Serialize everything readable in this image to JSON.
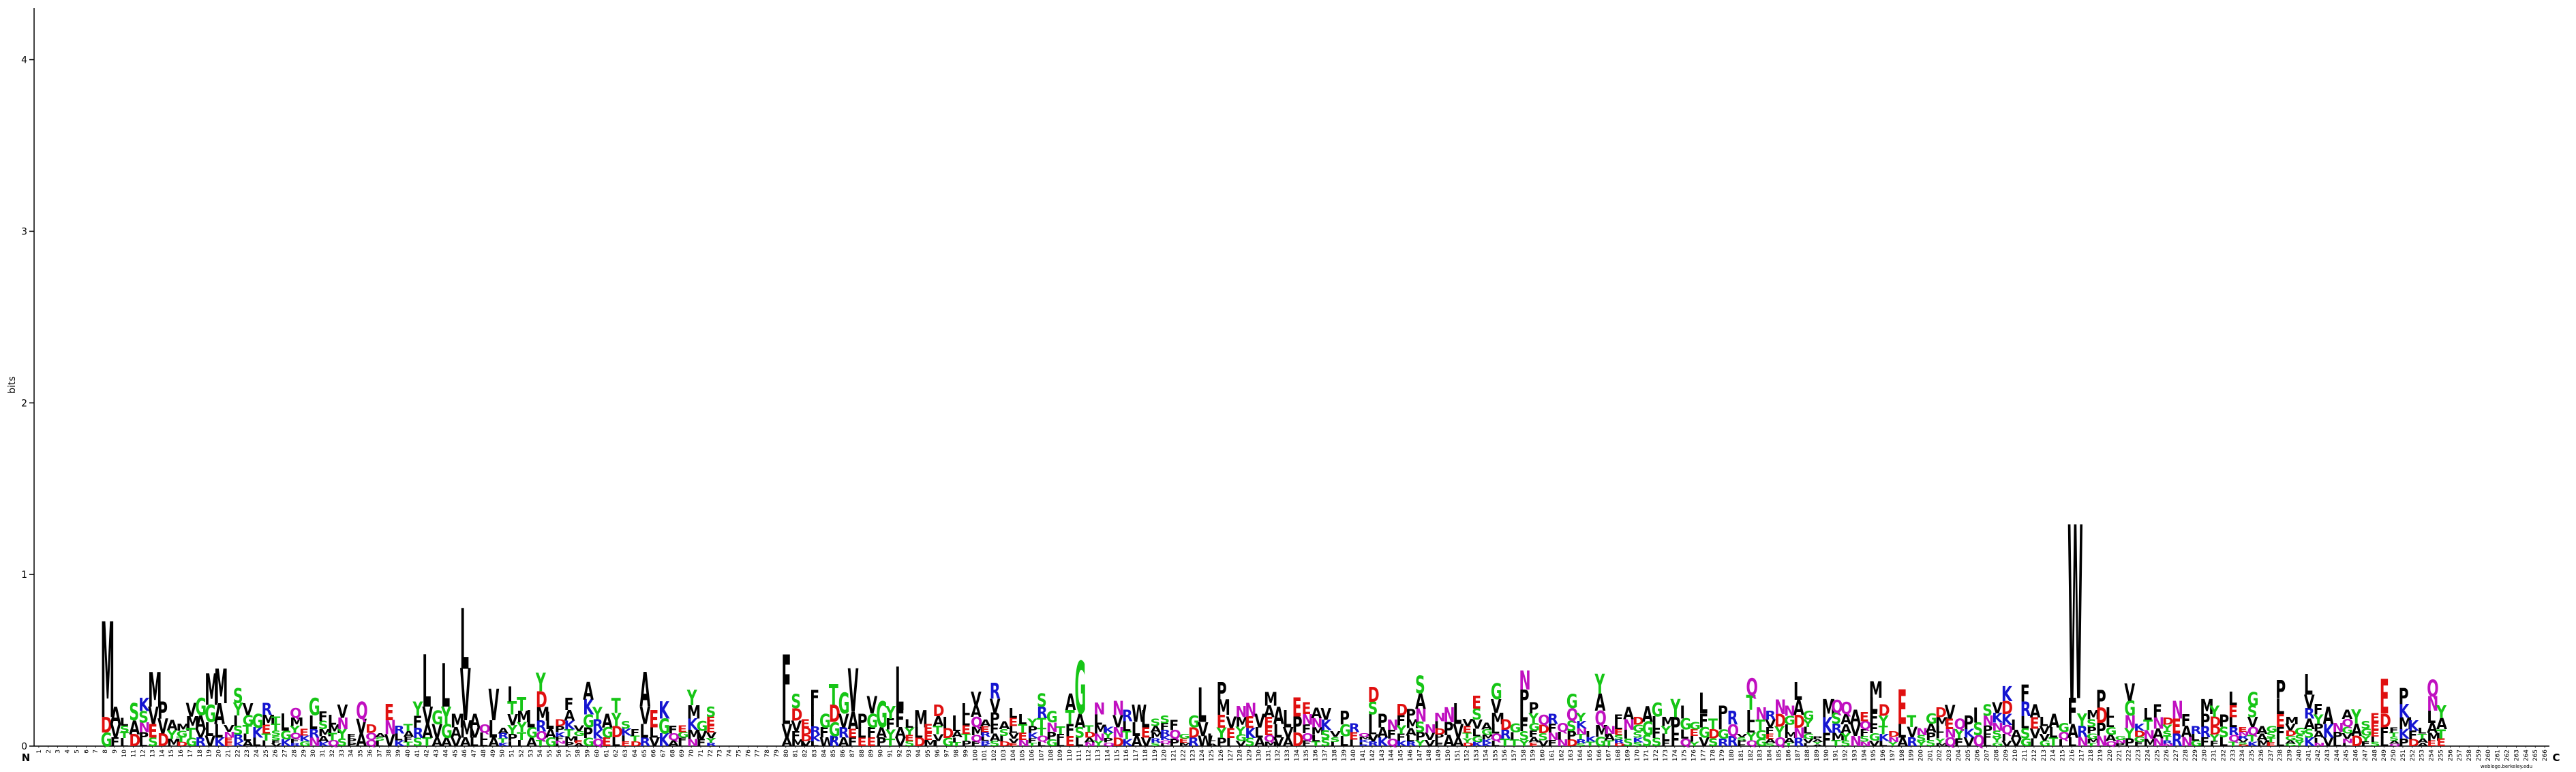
{
  "chart_data": {
    "type": "sequence-logo",
    "title": "",
    "ylabel": "bits",
    "ylim": [
      0,
      4.3
    ],
    "yticks": [
      0,
      1,
      2,
      3,
      4
    ],
    "n_positions": 266,
    "start_label": "N",
    "end_label": "C",
    "credit": "weblogo.berkeley.edu",
    "colors": {
      "hydrophobic": "#000000",
      "polar": "#16c516",
      "acidic": "#e01010",
      "basic": "#1515d0",
      "amide": "#c010c0"
    },
    "residue_color_group": {
      "A": "hydrophobic",
      "V": "hydrophobic",
      "L": "hydrophobic",
      "I": "hydrophobic",
      "M": "hydrophobic",
      "F": "hydrophobic",
      "W": "hydrophobic",
      "P": "hydrophobic",
      "G": "polar",
      "S": "polar",
      "T": "polar",
      "Y": "polar",
      "C": "polar",
      "D": "acidic",
      "E": "acidic",
      "K": "basic",
      "R": "basic",
      "H": "basic",
      "N": "amide",
      "Q": "amide"
    },
    "columns": [
      {
        "pos": 8,
        "letters": [
          [
            "M",
            0.55
          ],
          [
            "D",
            0.09
          ],
          [
            "G",
            0.08
          ]
        ]
      },
      {
        "pos": 9,
        "letters": [
          [
            "A",
            0.1
          ],
          [
            "V",
            0.08
          ],
          [
            "F",
            0.05
          ]
        ]
      },
      {
        "pos": 11,
        "letters": [
          [
            "S",
            0.1
          ],
          [
            "A",
            0.08
          ],
          [
            "D",
            0.07
          ]
        ]
      },
      {
        "pos": 13,
        "letters": [
          [
            "M",
            0.2
          ],
          [
            "V",
            0.1
          ],
          [
            "E",
            0.08
          ],
          [
            "S",
            0.05
          ]
        ]
      },
      {
        "pos": 18,
        "letters": [
          [
            "G",
            0.1
          ],
          [
            "A",
            0.08
          ],
          [
            "R",
            0.05
          ],
          [
            "V",
            0.05
          ]
        ]
      },
      {
        "pos": 19,
        "letters": [
          [
            "M",
            0.18
          ],
          [
            "G",
            0.1
          ],
          [
            "L",
            0.08
          ],
          [
            "V",
            0.06
          ]
        ]
      },
      {
        "pos": 20,
        "letters": [
          [
            "M",
            0.2
          ],
          [
            "A",
            0.12
          ],
          [
            "L",
            0.08
          ],
          [
            "K",
            0.05
          ]
        ]
      },
      {
        "pos": 24,
        "letters": [
          [
            "G",
            0.08
          ],
          [
            "K",
            0.06
          ],
          [
            "L",
            0.05
          ]
        ]
      },
      {
        "pos": 27,
        "letters": [
          [
            "L",
            0.1
          ],
          [
            "G",
            0.05
          ],
          [
            "K",
            0.04
          ]
        ]
      },
      {
        "pos": 30,
        "letters": [
          [
            "G",
            0.1
          ],
          [
            "L",
            0.08
          ],
          [
            "N",
            0.05
          ],
          [
            "R",
            0.05
          ]
        ]
      },
      {
        "pos": 42,
        "letters": [
          [
            "L",
            0.3
          ],
          [
            "V",
            0.1
          ],
          [
            "A",
            0.08
          ],
          [
            "T",
            0.05
          ]
        ]
      },
      {
        "pos": 43,
        "letters": [
          [
            "V",
            0.08
          ],
          [
            "G",
            0.08
          ],
          [
            "A",
            0.05
          ]
        ]
      },
      {
        "pos": 44,
        "letters": [
          [
            "L",
            0.25
          ],
          [
            "Y",
            0.1
          ],
          [
            "G",
            0.08
          ],
          [
            "A",
            0.05
          ]
        ]
      },
      {
        "pos": 45,
        "letters": [
          [
            "M",
            0.08
          ],
          [
            "A",
            0.06
          ],
          [
            "V",
            0.05
          ]
        ]
      },
      {
        "pos": 46,
        "letters": [
          [
            "L",
            0.35
          ],
          [
            "V",
            0.3
          ],
          [
            "M",
            0.1
          ],
          [
            "A",
            0.05
          ]
        ]
      },
      {
        "pos": 47,
        "letters": [
          [
            "A",
            0.08
          ],
          [
            "V",
            0.06
          ],
          [
            "L",
            0.05
          ]
        ]
      },
      {
        "pos": 49,
        "letters": [
          [
            "V",
            0.18
          ],
          [
            "L",
            0.1
          ],
          [
            "A",
            0.05
          ]
        ]
      },
      {
        "pos": 53,
        "letters": [
          [
            "L",
            0.1
          ],
          [
            "G",
            0.06
          ],
          [
            "A",
            0.05
          ]
        ]
      },
      {
        "pos": 55,
        "letters": [
          [
            "L",
            0.1
          ],
          [
            "G",
            0.05
          ],
          [
            "A",
            0.05
          ]
        ]
      },
      {
        "pos": 61,
        "letters": [
          [
            "A",
            0.08
          ],
          [
            "G",
            0.06
          ],
          [
            "E",
            0.05
          ]
        ]
      },
      {
        "pos": 65,
        "letters": [
          [
            "A",
            0.2
          ],
          [
            "V",
            0.1
          ],
          [
            "L",
            0.08
          ],
          [
            "R",
            0.05
          ]
        ]
      },
      {
        "pos": 66,
        "letters": [
          [
            "E",
            0.1
          ],
          [
            "L",
            0.06
          ],
          [
            "V",
            0.05
          ]
        ]
      },
      {
        "pos": 80,
        "letters": [
          [
            "F",
            0.3
          ],
          [
            "L",
            0.1
          ],
          [
            "V",
            0.08
          ],
          [
            "A",
            0.05
          ]
        ]
      },
      {
        "pos": 84,
        "letters": [
          [
            "G",
            0.08
          ],
          [
            "F",
            0.06
          ],
          [
            "W",
            0.05
          ]
        ]
      },
      {
        "pos": 85,
        "letters": [
          [
            "T",
            0.12
          ],
          [
            "D",
            0.1
          ],
          [
            "G",
            0.08
          ],
          [
            "R",
            0.06
          ]
        ]
      },
      {
        "pos": 86,
        "letters": [
          [
            "G",
            0.12
          ],
          [
            "V",
            0.08
          ],
          [
            "R",
            0.06
          ],
          [
            "A",
            0.05
          ]
        ]
      },
      {
        "pos": 87,
        "letters": [
          [
            "V",
            0.25
          ],
          [
            "A",
            0.1
          ],
          [
            "F",
            0.05
          ],
          [
            "E",
            0.05
          ]
        ]
      },
      {
        "pos": 88,
        "letters": [
          [
            "P",
            0.08
          ],
          [
            "L",
            0.06
          ],
          [
            "E",
            0.05
          ]
        ]
      },
      {
        "pos": 89,
        "letters": [
          [
            "V",
            0.1
          ],
          [
            "G",
            0.08
          ],
          [
            "F",
            0.06
          ],
          [
            "E",
            0.05
          ]
        ]
      },
      {
        "pos": 90,
        "letters": [
          [
            "G",
            0.15
          ],
          [
            "A",
            0.06
          ],
          [
            "P",
            0.05
          ]
        ]
      },
      {
        "pos": 92,
        "letters": [
          [
            "L",
            0.25
          ],
          [
            "F",
            0.1
          ],
          [
            "A",
            0.06
          ],
          [
            "V",
            0.05
          ]
        ]
      },
      {
        "pos": 94,
        "letters": [
          [
            "M",
            0.1
          ],
          [
            "L",
            0.06
          ],
          [
            "D",
            0.05
          ]
        ]
      },
      {
        "pos": 111,
        "letters": [
          [
            "G",
            0.3
          ],
          [
            "A",
            0.08
          ],
          [
            "S",
            0.06
          ],
          [
            "L",
            0.05
          ]
        ]
      },
      {
        "pos": 117,
        "letters": [
          [
            "W",
            0.1
          ],
          [
            "L",
            0.08
          ],
          [
            "A",
            0.06
          ]
        ]
      },
      {
        "pos": 118,
        "letters": [
          [
            "L",
            0.1
          ],
          [
            "E",
            0.06
          ],
          [
            "V",
            0.05
          ]
        ]
      },
      {
        "pos": 124,
        "letters": [
          [
            "L",
            0.2
          ],
          [
            "V",
            0.08
          ],
          [
            "W",
            0.06
          ]
        ]
      },
      {
        "pos": 130,
        "letters": [
          [
            "V",
            0.08
          ],
          [
            "L",
            0.06
          ],
          [
            "A",
            0.05
          ]
        ]
      },
      {
        "pos": 132,
        "letters": [
          [
            "A",
            0.1
          ],
          [
            "L",
            0.08
          ],
          [
            "V",
            0.05
          ]
        ]
      },
      {
        "pos": 133,
        "letters": [
          [
            "L",
            0.1
          ],
          [
            "V",
            0.06
          ],
          [
            "A",
            0.05
          ]
        ]
      },
      {
        "pos": 143,
        "letters": [
          [
            "P",
            0.08
          ],
          [
            "A",
            0.06
          ],
          [
            "K",
            0.05
          ]
        ]
      },
      {
        "pos": 151,
        "letters": [
          [
            "L",
            0.12
          ],
          [
            "V",
            0.08
          ],
          [
            "A",
            0.05
          ]
        ]
      },
      {
        "pos": 177,
        "letters": [
          [
            "L",
            0.12
          ],
          [
            "F",
            0.08
          ],
          [
            "G",
            0.06
          ],
          [
            "V",
            0.05
          ]
        ]
      },
      {
        "pos": 198,
        "letters": [
          [
            "E",
            0.2
          ],
          [
            "L",
            0.08
          ],
          [
            "A",
            0.05
          ]
        ]
      },
      {
        "pos": 203,
        "letters": [
          [
            "V",
            0.08
          ],
          [
            "E",
            0.06
          ],
          [
            "Q",
            0.05
          ],
          [
            "N",
            0.05
          ]
        ]
      },
      {
        "pos": 205,
        "letters": [
          [
            "P",
            0.08
          ],
          [
            "V",
            0.05
          ],
          [
            "K",
            0.05
          ]
        ]
      },
      {
        "pos": 214,
        "letters": [
          [
            "A",
            0.08
          ],
          [
            "L",
            0.06
          ],
          [
            "T",
            0.05
          ]
        ]
      },
      {
        "pos": 216,
        "letters": [
          [
            "W",
            1.0
          ],
          [
            "F",
            0.15
          ],
          [
            "A",
            0.08
          ],
          [
            "L",
            0.05
          ]
        ]
      },
      {
        "pos": 241,
        "letters": [
          [
            "L",
            0.12
          ],
          [
            "V",
            0.08
          ],
          [
            "A",
            0.06
          ],
          [
            "R",
            0.06
          ],
          [
            "K",
            0.05
          ],
          [
            "S",
            0.05
          ]
        ]
      },
      {
        "pos": 243,
        "letters": [
          [
            "A",
            0.1
          ],
          [
            "K",
            0.08
          ],
          [
            "V",
            0.05
          ]
        ]
      },
      {
        "pos": 249,
        "letters": [
          [
            "E",
            0.2
          ],
          [
            "D",
            0.08
          ],
          [
            "F",
            0.06
          ],
          [
            "L",
            0.05
          ]
        ]
      },
      {
        "pos": 252,
        "letters": [
          [
            "K",
            0.06
          ],
          [
            "F",
            0.05
          ],
          [
            "D",
            0.04
          ]
        ]
      }
    ],
    "background_levels": [
      0.08,
      0.12,
      0.06,
      0.15,
      0.1,
      0.04,
      0.18,
      0.09
    ]
  }
}
